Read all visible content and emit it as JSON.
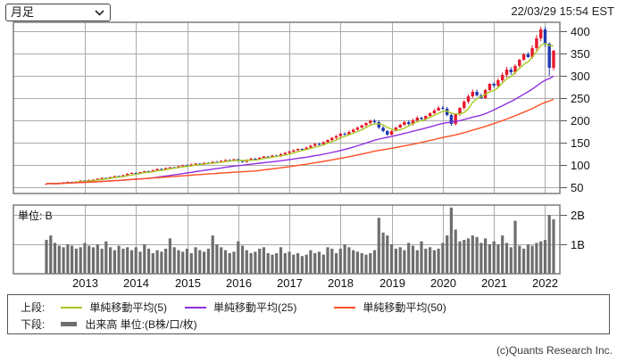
{
  "controls": {
    "timeframe": {
      "value": "月足"
    }
  },
  "header": {
    "timestamp": "22/03/29 15:54 EST"
  },
  "price_axis": {
    "ticks": [
      "400",
      "350",
      "300",
      "250",
      "200",
      "150",
      "100",
      "50"
    ]
  },
  "volume_axis": {
    "ticks": [
      "2B",
      "1B"
    ],
    "unit_label": "単位: B"
  },
  "x_axis": {
    "years": [
      "2013",
      "2014",
      "2015",
      "2016",
      "2017",
      "2018",
      "2019",
      "2020",
      "2021",
      "2022"
    ]
  },
  "legend": {
    "upper_label": "上段:",
    "sma5_label": "単純移動平均(5)",
    "sma25_label": "単純移動平均(25)",
    "sma50_label": "単純移動平均(50)",
    "lower_label": "下段:",
    "volume_label": "出来高 単位:(B株/口/枚)"
  },
  "footer": {
    "copyright": "(c)Quants Research Inc."
  },
  "colors": {
    "bull": "#e8192c",
    "bear": "#2238b0",
    "sma5": "#a6c922",
    "sma25": "#8f2fe0",
    "sma50": "#ff4f22",
    "volume_bar": "#6e6e6e",
    "grid": "#aaaaaa",
    "border": "#7c7c7c"
  },
  "chart_data": {
    "type": "candlestick+volume",
    "title": "",
    "timeframe": "monthly",
    "start_month": "2012-04",
    "months": 120,
    "price_ylim": [
      36,
      420
    ],
    "volume_ylim": [
      0,
      2.33
    ],
    "moving_averages": [
      5,
      25,
      50
    ],
    "close": [
      58,
      59,
      57,
      60,
      61,
      62,
      61,
      63,
      65,
      64,
      66,
      67,
      69,
      71,
      70,
      73,
      75,
      74,
      77,
      80,
      82,
      81,
      84,
      86,
      85,
      88,
      91,
      90,
      93,
      95,
      94,
      97,
      99,
      98,
      101,
      103,
      102,
      105,
      104,
      107,
      106,
      109,
      111,
      110,
      113,
      109,
      107,
      111,
      114,
      113,
      116,
      119,
      118,
      121,
      120,
      124,
      127,
      130,
      133,
      136,
      135,
      139,
      143,
      147,
      146,
      151,
      156,
      161,
      165,
      170,
      168,
      174,
      179,
      184,
      189,
      194,
      199,
      196,
      184,
      176,
      168,
      176,
      184,
      190,
      196,
      192,
      200,
      206,
      203,
      210,
      216,
      222,
      228,
      226,
      212,
      192,
      214,
      228,
      242,
      254,
      264,
      256,
      250,
      268,
      282,
      278,
      290,
      302,
      314,
      308,
      322,
      336,
      348,
      342,
      362,
      384,
      404,
      372,
      318,
      356
    ],
    "volume_B": [
      1.15,
      1.3,
      1.05,
      0.95,
      0.9,
      1.0,
      0.95,
      0.85,
      0.9,
      1.05,
      0.95,
      0.9,
      1.0,
      0.85,
      1.1,
      0.9,
      0.8,
      0.95,
      0.85,
      0.9,
      0.8,
      0.9,
      0.75,
      1.0,
      0.85,
      0.7,
      0.8,
      0.75,
      0.85,
      1.2,
      0.9,
      0.8,
      0.75,
      0.85,
      0.7,
      0.9,
      0.8,
      0.75,
      0.85,
      1.3,
      1.0,
      0.9,
      0.8,
      0.7,
      0.75,
      1.1,
      0.95,
      0.8,
      0.7,
      0.75,
      0.85,
      0.9,
      0.7,
      0.65,
      0.7,
      0.9,
      0.7,
      0.75,
      0.65,
      0.7,
      0.6,
      0.65,
      0.8,
      0.7,
      0.75,
      0.65,
      0.9,
      0.85,
      0.7,
      0.85,
      1.0,
      0.9,
      0.8,
      0.75,
      0.7,
      0.65,
      0.7,
      0.8,
      1.9,
      1.4,
      1.3,
      1.0,
      0.85,
      0.9,
      0.8,
      1.05,
      0.95,
      0.8,
      1.1,
      0.85,
      0.9,
      0.8,
      0.85,
      1.05,
      1.3,
      2.25,
      1.5,
      1.1,
      1.15,
      1.2,
      1.3,
      1.25,
      1.05,
      1.2,
      1.0,
      1.1,
      1.0,
      1.3,
      1.05,
      0.9,
      1.8,
      0.95,
      0.85,
      1.0,
      0.95,
      1.05,
      1.1,
      1.15,
      2.0,
      1.85
    ],
    "wick_overrides": {
      "95": {
        "low": 188
      },
      "116": {
        "high": 410
      },
      "118": {
        "low": 300
      }
    }
  }
}
